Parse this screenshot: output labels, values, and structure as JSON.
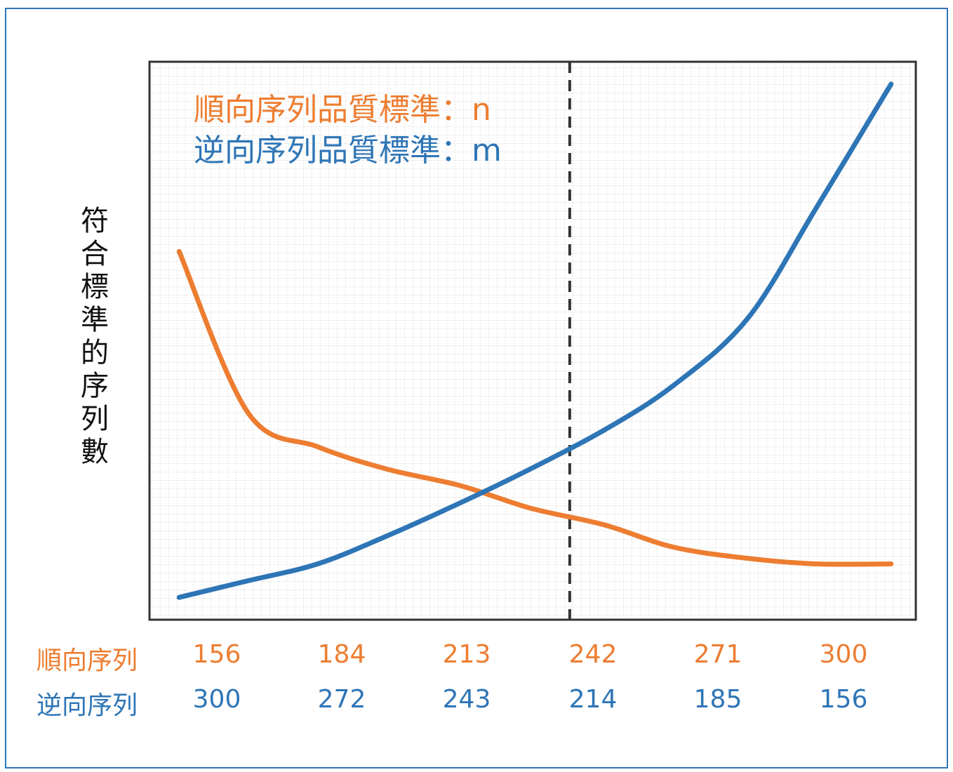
{
  "colors": {
    "forward": "#ed7d31",
    "reverse": "#2e75b6",
    "frame": "#2e75b6",
    "axis": "#333333"
  },
  "chart_data": {
    "type": "line",
    "ylabel": "符合標準的序列數",
    "legend": [
      {
        "text": "順向序列品質標準：n",
        "color": "#ed7d31"
      },
      {
        "text": "逆向序列品質標準：m",
        "color": "#2e75b6"
      }
    ],
    "x_rows": [
      {
        "label": "順向序列",
        "ticks": [
          "156",
          "184",
          "213",
          "242",
          "271",
          "300"
        ],
        "color": "#ed7d31"
      },
      {
        "label": "逆向序列",
        "ticks": [
          "300",
          "272",
          "243",
          "214",
          "185",
          "156"
        ],
        "color": "#2e75b6"
      }
    ],
    "x": [
      156,
      170,
      184,
      198,
      213,
      227,
      242,
      256,
      271,
      285,
      300
    ],
    "xlim": [
      150,
      305
    ],
    "ylim": [
      0,
      100
    ],
    "grid": true,
    "vline_x": 235,
    "series": [
      {
        "color": "#ed7d31",
        "values": [
          66,
          37,
          31,
          27,
          24,
          20,
          17,
          13,
          11,
          10,
          10
        ]
      },
      {
        "color": "#2e75b6",
        "values": [
          4,
          7,
          10,
          15,
          21,
          27,
          34,
          42,
          54,
          74,
          96
        ]
      }
    ]
  }
}
